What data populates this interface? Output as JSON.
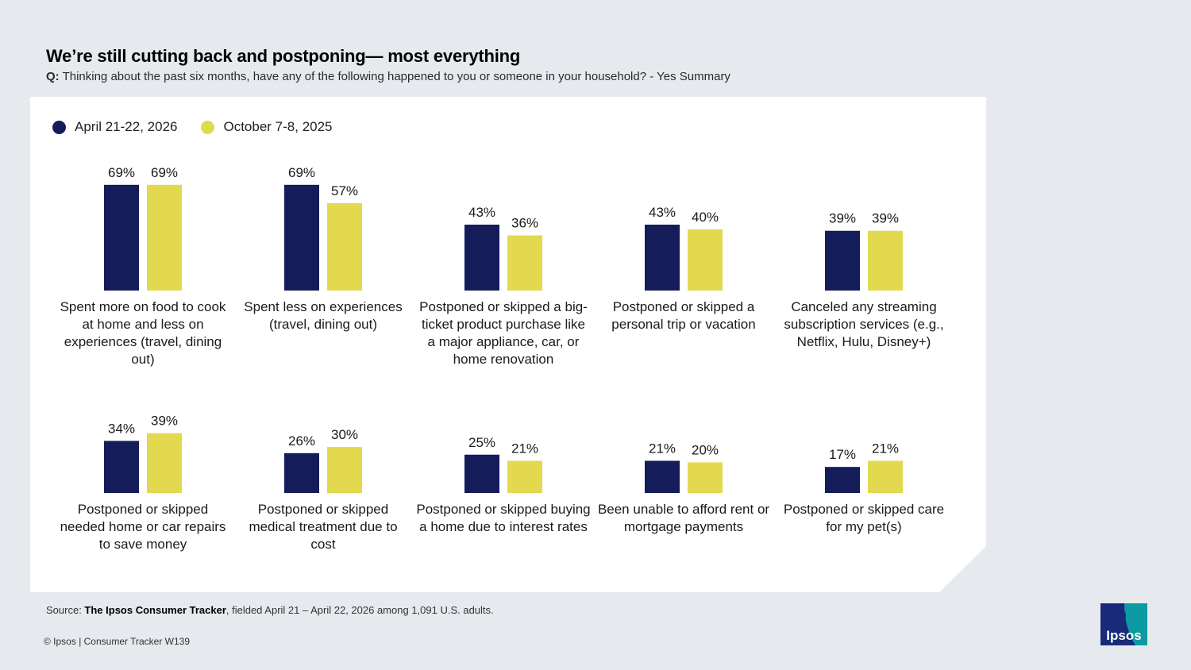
{
  "title": "We’re still cutting back and postponing— most everything",
  "question": {
    "label": "Q:",
    "text": "Thinking about the past six months, have any of the following happened to you or someone in your household? - Yes Summary"
  },
  "legend": [
    {
      "name": "April 21-22, 2026",
      "color": "#141c5a"
    },
    {
      "name": "October 7-8, 2025",
      "color": "#e2d94f"
    }
  ],
  "chart_data": {
    "type": "bar",
    "series": [
      {
        "name": "April 21-22, 2026",
        "color": "#141c5a",
        "values": [
          69,
          69,
          43,
          43,
          39,
          34,
          26,
          25,
          21,
          17
        ]
      },
      {
        "name": "October 7-8, 2025",
        "color": "#e2d94f",
        "values": [
          69,
          57,
          36,
          40,
          39,
          39,
          30,
          21,
          20,
          21
        ]
      }
    ],
    "categories": [
      "Spent more on food to cook at home and less on experiences (travel, dining out)",
      "Spent less on experiences (travel, dining out)",
      "Postponed or skipped a big-ticket product purchase like a major appliance, car, or home renovation",
      "Postponed or skipped a personal trip or vacation",
      "Canceled any streaming subscription services (e.g., Netflix, Hulu, Disney+)",
      "Postponed or skipped needed home or car repairs to save money",
      "Postponed or skipped medical treatment due to cost",
      "Postponed or skipped buying a home due to interest rates",
      "Been unable to afford rent or mortgage payments",
      "Postponed or skipped care for my pet(s)"
    ],
    "value_suffix": "%",
    "grid": false,
    "legend_position": "top-left"
  },
  "source": {
    "prefix": "Source: ",
    "name": "The Ipsos Consumer Tracker",
    "suffix": ", fielded April 21 – April 22, 2026 among 1,091 U.S. adults."
  },
  "copyright": "© Ipsos | Consumer Tracker W139",
  "logo": {
    "text": "Ipsos",
    "color": "#0d9aa2",
    "dark": "#1a2a7a"
  }
}
